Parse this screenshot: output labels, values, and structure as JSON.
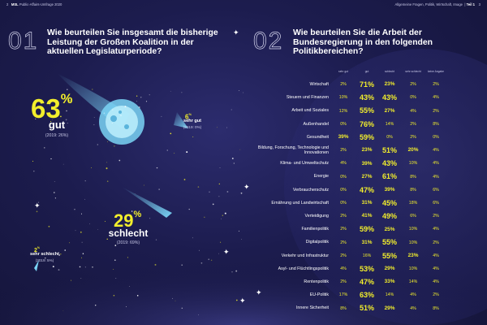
{
  "header": {
    "left_page_num": "2",
    "left_brand": "MSL",
    "left_title": "Public-Affairs-Umfrage 2020",
    "right_crumb": "Allgemeine Fragen, Politik, Wirtschaft, Image",
    "right_part": "Teil 1",
    "right_page_num": "3"
  },
  "colors": {
    "yellow": "#f2ee2c",
    "background": "#1c1c4e",
    "comet": "#7ad4f5"
  },
  "left": {
    "number": "01",
    "question": "Wie beurteilen Sie insgesamt die bisherige Leistung der Großen Koalition in der aktuellen Legislaturperiode?",
    "percent_sign": "%"
  },
  "right": {
    "number": "02",
    "question": "Wie beurteilen Sie die Arbeit der Bundesregierung in den folgenden Politikbereichen?"
  },
  "chart_data": [
    {
      "type": "pie",
      "categories": [
        "gut",
        "sehr gut",
        "schlecht",
        "sehr schlecht"
      ],
      "values": [
        63,
        6,
        29,
        2
      ],
      "comparison_labels": [
        "(2019: 26%)",
        "(2019: 0%)",
        "(2019: 69%)",
        "(2019: 5%)"
      ]
    },
    {
      "type": "table",
      "columns": [
        "sehr gut",
        "gut",
        "schlecht",
        "sehr schlecht",
        "keine Angabe"
      ],
      "rows": [
        {
          "label": "Wirtschaft",
          "values": [
            2,
            71,
            23,
            2,
            2
          ]
        },
        {
          "label": "Steuern und Finanzen",
          "values": [
            10,
            43,
            43,
            0,
            4
          ]
        },
        {
          "label": "Arbeit und Soziales",
          "values": [
            12,
            55,
            27,
            4,
            2
          ]
        },
        {
          "label": "Außenhandel",
          "values": [
            0,
            76,
            14,
            2,
            8
          ]
        },
        {
          "label": "Gesundheit",
          "values": [
            39,
            59,
            0,
            2,
            0
          ]
        },
        {
          "label": "Bildung, Forschung, Technologie und Innovationen",
          "values": [
            2,
            23,
            51,
            20,
            4
          ]
        },
        {
          "label": "Klima- und Umweltschutz",
          "values": [
            4,
            39,
            43,
            10,
            4
          ]
        },
        {
          "label": "Energie",
          "values": [
            0,
            27,
            61,
            8,
            4
          ]
        },
        {
          "label": "Verbraucherschutz",
          "values": [
            0,
            47,
            39,
            8,
            6
          ]
        },
        {
          "label": "Ernährung und Landwirtschaft",
          "values": [
            0,
            31,
            45,
            18,
            6
          ]
        },
        {
          "label": "Verteidigung",
          "values": [
            2,
            41,
            49,
            6,
            2
          ]
        },
        {
          "label": "Familienpolitik",
          "values": [
            2,
            59,
            25,
            10,
            4
          ]
        },
        {
          "label": "Digitalpolitik",
          "values": [
            2,
            31,
            55,
            10,
            2
          ]
        },
        {
          "label": "Verkehr und Infrastruktur",
          "values": [
            2,
            16,
            55,
            23,
            4
          ]
        },
        {
          "label": "Asyl- und Flüchtlingspolitik",
          "values": [
            4,
            53,
            29,
            10,
            4
          ]
        },
        {
          "label": "Rentenpolitik",
          "values": [
            2,
            47,
            33,
            14,
            4
          ]
        },
        {
          "label": "EU-Politik",
          "values": [
            17,
            63,
            14,
            4,
            2
          ]
        },
        {
          "label": "Innere Sicherheit",
          "values": [
            8,
            51,
            29,
            4,
            8
          ]
        }
      ]
    }
  ]
}
